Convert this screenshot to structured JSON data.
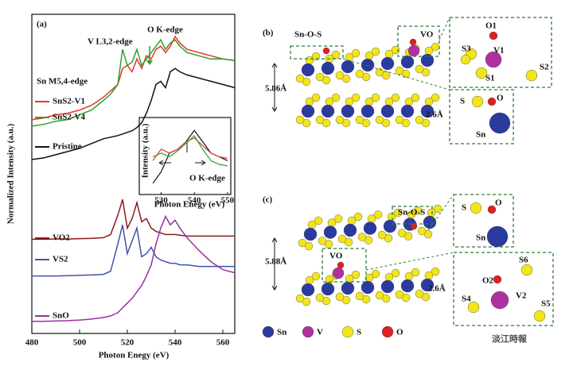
{
  "chart_data": [
    {
      "type": "line",
      "panel_label": "(a)",
      "x_label": "Photon Enegy (eV)",
      "y_label": "Normalized Intensity (a.u.)",
      "annotations": [
        "V L3,2-edge",
        "O K-edge",
        "Sn M5,4-edge"
      ],
      "xlim": [
        480,
        565
      ],
      "xticks": [
        480,
        500,
        520,
        540,
        560
      ],
      "ylim": [
        0,
        10
      ],
      "x": [
        480,
        485,
        490,
        495,
        500,
        505,
        510,
        513,
        516,
        518,
        520,
        522,
        524,
        526,
        528,
        530,
        532,
        534,
        536,
        538,
        540,
        542,
        545,
        550,
        555,
        560,
        565
      ],
      "series": [
        {
          "name": "SnS2-V1",
          "color": "#e8332a",
          "values": [
            6.7,
            6.75,
            6.85,
            6.9,
            7.0,
            7.15,
            7.4,
            7.6,
            7.8,
            8.3,
            8.4,
            8.2,
            8.6,
            8.3,
            8.7,
            8.6,
            8.9,
            9.0,
            8.8,
            9.0,
            9.3,
            9.1,
            8.9,
            8.8,
            8.7,
            8.6,
            8.55
          ]
        },
        {
          "name": "SnS2-V4",
          "color": "#2ea02c",
          "values": [
            6.5,
            6.55,
            6.65,
            6.7,
            6.85,
            7.0,
            7.3,
            7.5,
            7.8,
            8.9,
            8.4,
            8.5,
            8.9,
            8.4,
            8.6,
            8.8,
            9.0,
            9.2,
            8.9,
            9.1,
            9.2,
            9.0,
            8.8,
            8.7,
            8.6,
            8.6,
            8.55
          ]
        },
        {
          "name": "Pristine",
          "color": "#111111",
          "values": [
            5.45,
            5.5,
            5.6,
            5.7,
            5.8,
            5.95,
            6.1,
            6.15,
            6.2,
            6.25,
            6.3,
            6.35,
            6.45,
            6.6,
            6.9,
            7.3,
            7.8,
            7.9,
            7.7,
            8.2,
            8.3,
            8.2,
            8.1,
            8.0,
            7.9,
            7.8,
            7.7
          ]
        },
        {
          "name": "VO2",
          "color": "#8b1a1a",
          "values": [
            2.95,
            2.95,
            2.96,
            2.96,
            2.97,
            2.98,
            3.0,
            3.1,
            3.7,
            4.2,
            3.3,
            3.6,
            4.1,
            3.5,
            3.6,
            3.3,
            3.2,
            3.15,
            3.1,
            3.1,
            3.1,
            3.08,
            3.05,
            3.05,
            3.05,
            3.05,
            3.05
          ]
        },
        {
          "name": "VS2",
          "color": "#4050b0",
          "values": [
            1.8,
            1.8,
            1.8,
            1.81,
            1.82,
            1.83,
            1.85,
            1.95,
            2.8,
            3.4,
            2.5,
            2.9,
            3.3,
            2.4,
            2.5,
            2.7,
            2.4,
            2.3,
            2.25,
            2.2,
            2.2,
            2.15,
            2.15,
            2.1,
            2.1,
            2.1,
            2.1
          ]
        },
        {
          "name": "SnO",
          "color": "#9b30a0",
          "values": [
            0.38,
            0.38,
            0.39,
            0.4,
            0.42,
            0.45,
            0.5,
            0.55,
            0.65,
            0.8,
            0.95,
            1.1,
            1.3,
            1.5,
            1.8,
            2.15,
            2.8,
            3.3,
            3.67,
            3.4,
            3.55,
            3.3,
            3.0,
            2.6,
            2.25,
            2.0,
            1.9
          ]
        }
      ]
    },
    {
      "type": "line",
      "x_label": "Photon Enegy (eV)",
      "y_label": "Intensity (a.u.)",
      "annotations": [
        "O K-edge"
      ],
      "xlim": [
        527,
        551
      ],
      "xticks": [
        530,
        540,
        550
      ],
      "ylim": [
        0,
        1
      ],
      "x": [
        527.5,
        530,
        532.5,
        535,
        537.5,
        540,
        542.5,
        545,
        547.5,
        550
      ],
      "series": [
        {
          "color": "#111111",
          "values": [
            0.15,
            0.3,
            0.55,
            0.6,
            0.7,
            0.85,
            0.7,
            0.55,
            0.5,
            0.45
          ]
        },
        {
          "color": "#e8332a",
          "values": [
            0.45,
            0.6,
            0.55,
            0.6,
            0.7,
            0.75,
            0.65,
            0.55,
            0.5,
            0.48
          ]
        },
        {
          "color": "#2ea02c",
          "values": [
            0.5,
            0.55,
            0.5,
            0.58,
            0.68,
            0.78,
            0.6,
            0.45,
            0.4,
            0.38
          ]
        }
      ]
    }
  ],
  "panel_b": {
    "label": "(b)",
    "sites": [
      "Sn-O-S",
      "VO"
    ],
    "spacing": "5.86Å",
    "gap": "2.6Å",
    "detail_1": [
      "O1",
      "V1",
      "S3",
      "S1",
      "S2"
    ],
    "detail_2": [
      "S",
      "O",
      "Sn"
    ]
  },
  "panel_c": {
    "label": "(c)",
    "sites": [
      "Sn-O-S",
      "VO"
    ],
    "spacing": "5.88Å",
    "gap": "2.6Å",
    "detail_1": [
      "S",
      "O",
      "Sn"
    ],
    "detail_2": [
      "S6",
      "O2",
      "V2",
      "S4",
      "S5"
    ]
  },
  "atom_legend": [
    "Sn",
    "V",
    "S",
    "O"
  ],
  "watermark": "淡江時報"
}
